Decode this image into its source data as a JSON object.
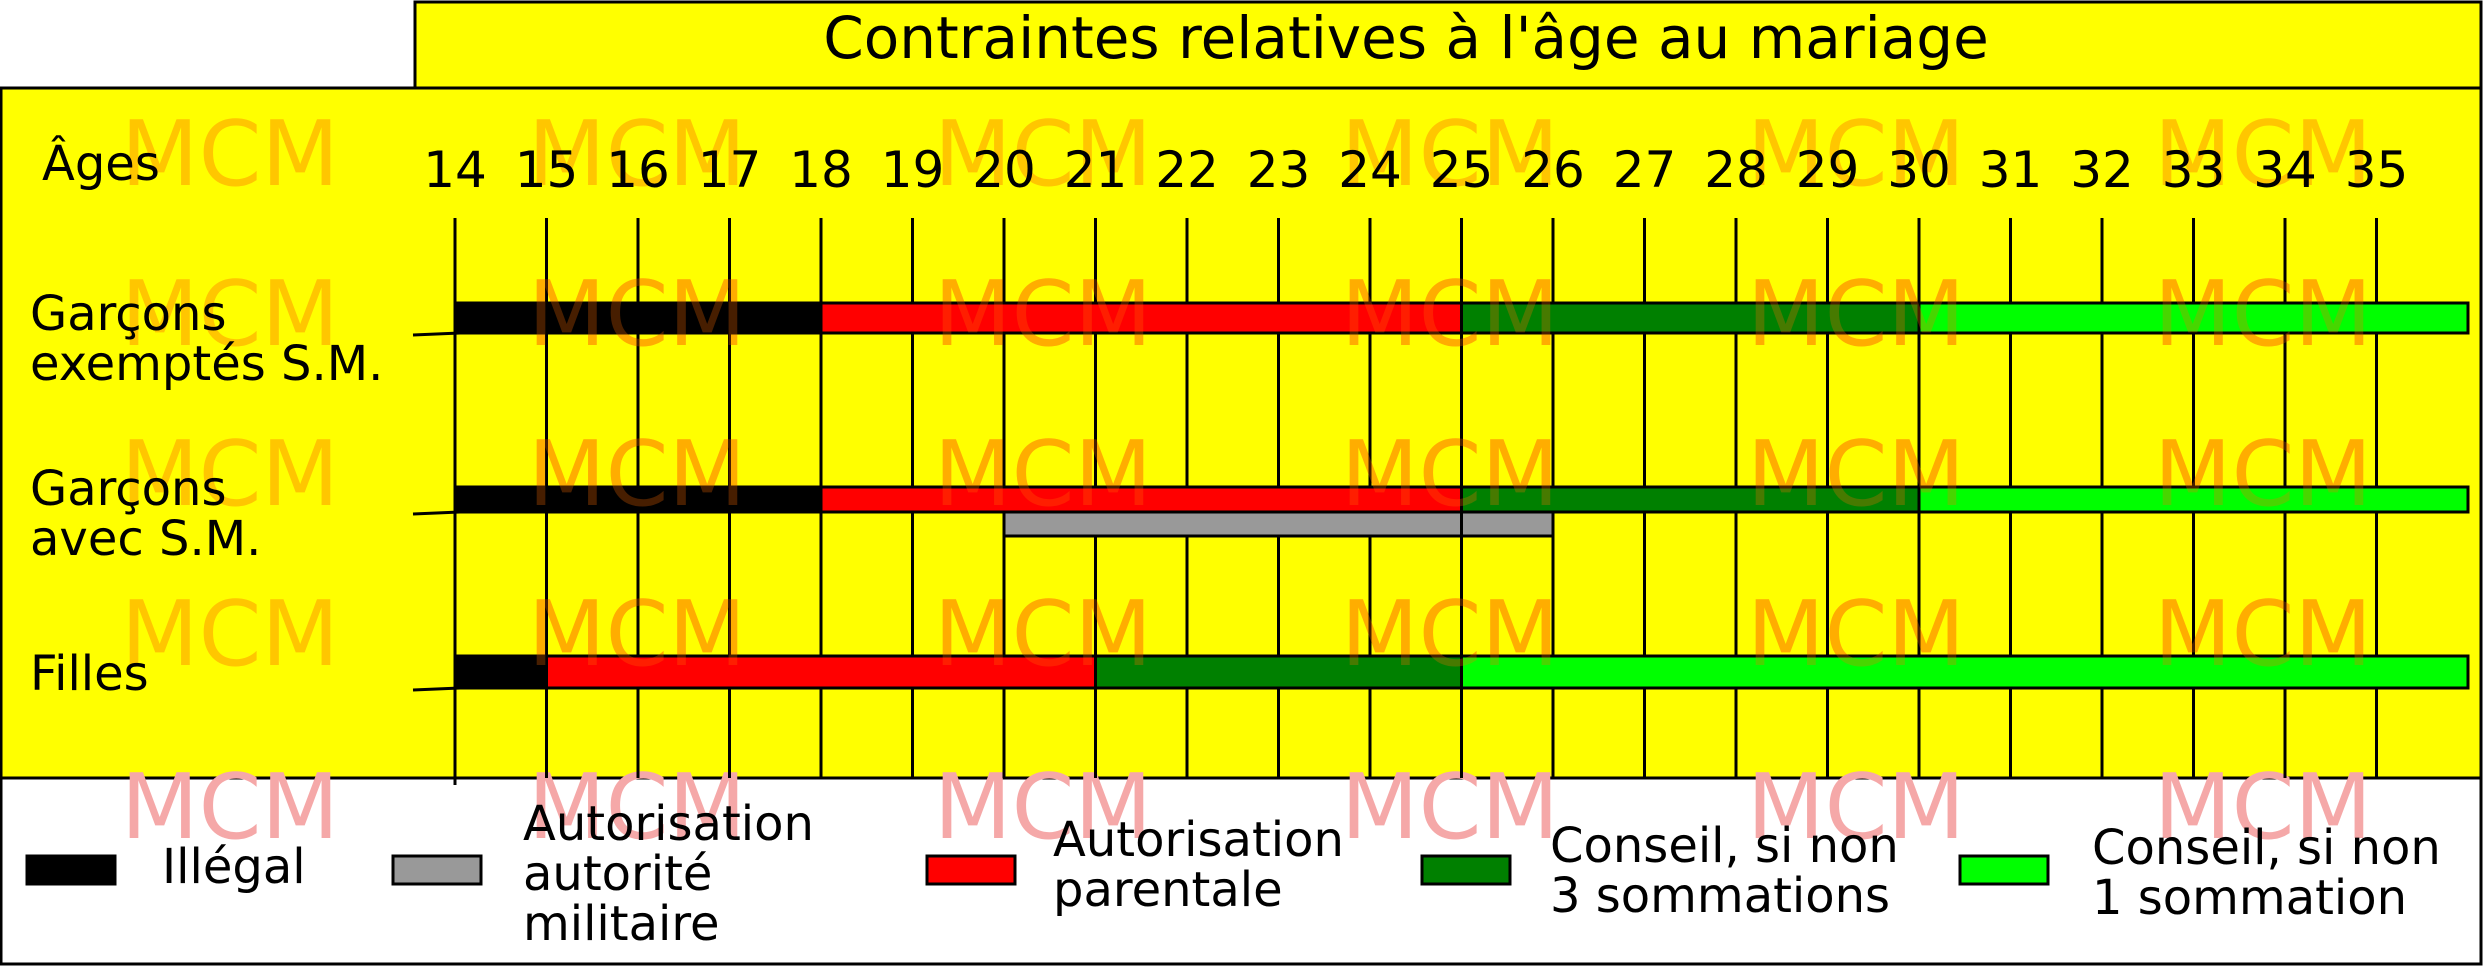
{
  "title": "Contraintes relatives à l'âge au mariage",
  "axis_label": "Âges",
  "ages": [
    14,
    15,
    16,
    17,
    18,
    19,
    20,
    21,
    22,
    23,
    24,
    25,
    26,
    27,
    28,
    29,
    30,
    31,
    32,
    33,
    34,
    35
  ],
  "watermark": "MCM",
  "colors": {
    "background": "#ffff00",
    "illegal": "#000000",
    "military": "#999999",
    "parental": "#ff0000",
    "advice3": "#008000",
    "advice1": "#00ff00",
    "watermark_on_yellow": "#ffc000",
    "watermark_on_bars": "#ff6a00",
    "watermark_on_white": "#f5a8a8"
  },
  "rows": [
    {
      "label_lines": [
        "Garçons",
        "exemptés S.M."
      ],
      "segments": [
        {
          "from": 14,
          "to": 18,
          "kind": "illegal"
        },
        {
          "from": 18,
          "to": 25,
          "kind": "parental"
        },
        {
          "from": 25,
          "to": 30,
          "kind": "advice3"
        },
        {
          "from": 30,
          "to": 36,
          "kind": "advice1"
        }
      ]
    },
    {
      "label_lines": [
        "Garçons",
        "avec S.M."
      ],
      "segments": [
        {
          "from": 14,
          "to": 18,
          "kind": "illegal"
        },
        {
          "from": 18,
          "to": 25,
          "kind": "parental"
        },
        {
          "from": 25,
          "to": 30,
          "kind": "advice3"
        },
        {
          "from": 30,
          "to": 36,
          "kind": "advice1"
        }
      ],
      "sub_segments": [
        {
          "from": 20,
          "to": 25,
          "kind": "military"
        },
        {
          "from": 25,
          "to": 26,
          "kind": "military"
        }
      ]
    },
    {
      "label_lines": [
        "Filles"
      ],
      "segments": [
        {
          "from": 14,
          "to": 15,
          "kind": "illegal"
        },
        {
          "from": 15,
          "to": 21,
          "kind": "parental"
        },
        {
          "from": 21,
          "to": 25,
          "kind": "advice3"
        },
        {
          "from": 25,
          "to": 36,
          "kind": "advice1"
        }
      ]
    }
  ],
  "legend": [
    {
      "kind": "illegal",
      "lines": [
        "Illégal"
      ]
    },
    {
      "kind": "military",
      "lines": [
        "Autorisation",
        "autorité",
        "militaire"
      ]
    },
    {
      "kind": "parental",
      "lines": [
        "Autorisation",
        " parentale"
      ]
    },
    {
      "kind": "advice3",
      "lines": [
        "Conseil, si non",
        "3 sommations"
      ]
    },
    {
      "kind": "advice1",
      "lines": [
        "Conseil, si non",
        "1 sommation"
      ]
    }
  ]
}
